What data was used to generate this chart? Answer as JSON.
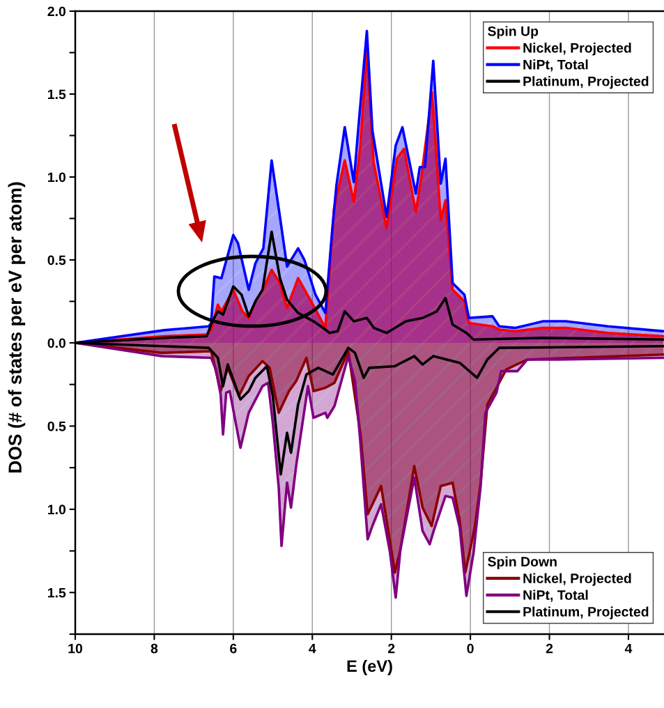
{
  "chart_data": [
    {
      "type": "area",
      "legend_title": "Spin Up",
      "legend": "top right",
      "grid": "x",
      "tick_labels": "y",
      "ylabel": "DOS (# of states per eV per atom)",
      "xlim": [
        -10,
        4.9
      ],
      "xticks": [
        -10,
        -8,
        -6,
        -4,
        -2,
        0,
        2,
        4
      ],
      "ylim": [
        0,
        2.0
      ],
      "yticks": [
        {
          "value": 0,
          "label": "0.0"
        },
        {
          "value": 0.25,
          "label": null
        },
        {
          "value": 0.5,
          "label": "0.5"
        },
        {
          "value": 0.75,
          "label": null
        },
        {
          "value": 1.0,
          "label": "1.0"
        },
        {
          "value": 1.25,
          "label": null
        },
        {
          "value": 1.5,
          "label": "1.5"
        },
        {
          "value": 1.75,
          "label": null
        },
        {
          "value": 2.0,
          "label": "2.0"
        }
      ],
      "series": [
        {
          "name": "Nickel, Projected",
          "color": "#ff0000",
          "x": [
            -10,
            -7.76,
            -6.67,
            -6.56,
            -6.39,
            -6.3,
            -6.0,
            -5.77,
            -5.61,
            -5.44,
            -5.21,
            -5.03,
            -4.82,
            -4.64,
            -4.36,
            -4.03,
            -3.67,
            -3.45,
            -3.18,
            -2.95,
            -2.79,
            -2.62,
            -2.45,
            -2.12,
            -1.86,
            -1.68,
            -1.38,
            -1.24,
            -0.97,
            -0.75,
            -0.63,
            -0.45,
            -0.15,
            -0.04,
            0.56,
            0.73,
            1.14,
            1.84,
            2.42,
            3.48,
            4.89
          ],
          "values": [
            0,
            0.04,
            0.05,
            0.08,
            0.23,
            0.19,
            0.32,
            0.19,
            0.15,
            0.25,
            0.34,
            0.44,
            0.36,
            0.21,
            0.39,
            0.25,
            0.09,
            0.81,
            1.1,
            0.85,
            1.18,
            1.76,
            1.09,
            0.69,
            1.11,
            1.17,
            0.79,
            1.0,
            1.51,
            0.74,
            0.86,
            0.32,
            0.25,
            0.12,
            0.1,
            0.08,
            0.07,
            0.09,
            0.09,
            0.06,
            0.04
          ]
        },
        {
          "name": "NiPt, Total",
          "color": "#0000ff",
          "x": [
            -10,
            -7.76,
            -6.62,
            -6.56,
            -6.48,
            -6.3,
            -6.0,
            -5.88,
            -5.61,
            -5.44,
            -5.24,
            -5.03,
            -4.82,
            -4.64,
            -4.36,
            -4.2,
            -3.92,
            -3.67,
            -3.5,
            -3.39,
            -3.18,
            -2.95,
            -2.83,
            -2.62,
            -2.48,
            -2.12,
            -1.89,
            -1.72,
            -1.38,
            -1.28,
            -1.15,
            -0.94,
            -0.75,
            -0.63,
            -0.45,
            -0.15,
            -0.04,
            0.56,
            0.73,
            1.14,
            1.84,
            2.42,
            3.48,
            4.89
          ],
          "values": [
            0,
            0.076,
            0.1,
            0.12,
            0.4,
            0.39,
            0.65,
            0.6,
            0.32,
            0.48,
            0.57,
            1.1,
            0.76,
            0.46,
            0.57,
            0.5,
            0.29,
            0.18,
            0.67,
            0.95,
            1.3,
            0.97,
            1.31,
            1.88,
            1.28,
            0.76,
            1.19,
            1.3,
            0.9,
            1.06,
            1.06,
            1.7,
            0.96,
            1.11,
            0.36,
            0.29,
            0.15,
            0.16,
            0.1,
            0.09,
            0.13,
            0.13,
            0.1,
            0.07
          ]
        },
        {
          "name": "Platinum, Projected",
          "type": "line",
          "color": "#000000",
          "x": [
            -10,
            -7.76,
            -6.67,
            -6.53,
            -6.39,
            -6.26,
            -6.0,
            -5.79,
            -5.61,
            -5.44,
            -5.26,
            -5.03,
            -4.82,
            -4.64,
            -4.36,
            -3.97,
            -3.67,
            -3.57,
            -3.36,
            -3.18,
            -2.95,
            -2.62,
            -2.44,
            -2.12,
            -1.63,
            -1.21,
            -0.85,
            -0.63,
            -0.45,
            -0.1,
            0.08,
            1.84,
            4.89
          ],
          "values": [
            0,
            0.03,
            0.04,
            0.13,
            0.19,
            0.17,
            0.34,
            0.29,
            0.16,
            0.25,
            0.32,
            0.67,
            0.39,
            0.26,
            0.18,
            0.13,
            0.08,
            0.06,
            0.07,
            0.19,
            0.13,
            0.15,
            0.09,
            0.06,
            0.13,
            0.15,
            0.19,
            0.27,
            0.11,
            0.06,
            0.02,
            0.03,
            0.02
          ]
        }
      ]
    },
    {
      "type": "area",
      "legend_title": "Spin Down",
      "legend": "bottom right",
      "grid": "x",
      "xlabel": "E (eV)",
      "xlim": [
        -10,
        4.9
      ],
      "xticks": [
        {
          "value": -10,
          "label": "10"
        },
        {
          "value": -8,
          "label": "8"
        },
        {
          "value": -6,
          "label": "6"
        },
        {
          "value": -4,
          "label": "4"
        },
        {
          "value": -2,
          "label": "2"
        },
        {
          "value": 0,
          "label": "0"
        },
        {
          "value": 2,
          "label": "2"
        },
        {
          "value": 4,
          "label": "4"
        }
      ],
      "ylim": [
        1.75,
        0
      ],
      "yticks": [
        {
          "value": 0.25,
          "label": null
        },
        {
          "value": 0.5,
          "label": "0.5"
        },
        {
          "value": 0.75,
          "label": null
        },
        {
          "value": 1.0,
          "label": "1.0"
        },
        {
          "value": 1.25,
          "label": null
        },
        {
          "value": 1.5,
          "label": "1.5"
        },
        {
          "value": 1.75,
          "label": null
        }
      ],
      "series": [
        {
          "name": "Nickel, Projected",
          "color": "#8b0000",
          "x": [
            -10,
            -7.8,
            -6.56,
            -6.32,
            -6.14,
            -5.86,
            -5.61,
            -5.26,
            -5.08,
            -4.85,
            -4.59,
            -4.41,
            -4.15,
            -3.97,
            -3.67,
            -3.44,
            -3.09,
            -2.78,
            -2.6,
            -2.26,
            -1.91,
            -1.77,
            -1.42,
            -1.21,
            -0.98,
            -0.75,
            -0.45,
            -0.27,
            -0.13,
            0.11,
            0.26,
            0.43,
            0.66,
            0.91,
            1.44,
            4.89
          ],
          "values": [
            0,
            0.06,
            0.05,
            0.29,
            0.15,
            0.32,
            0.2,
            0.11,
            0.15,
            0.42,
            0.29,
            0.23,
            0.09,
            0.29,
            0.27,
            0.24,
            0.05,
            0.55,
            1.03,
            0.86,
            1.38,
            1.24,
            0.74,
            0.99,
            1.1,
            0.86,
            0.84,
            1.07,
            1.38,
            1.11,
            0.84,
            0.37,
            0.27,
            0.16,
            0.1,
            0.07
          ]
        },
        {
          "name": "NiPt, Total",
          "color": "#800080",
          "x": [
            -10,
            -7.8,
            -6.56,
            -6.44,
            -6.32,
            -6.26,
            -6.18,
            -6.09,
            -5.82,
            -5.61,
            -5.26,
            -5.12,
            -5.0,
            -4.85,
            -4.78,
            -4.64,
            -4.54,
            -4.41,
            -4.11,
            -3.97,
            -3.67,
            -3.62,
            -3.44,
            -3.09,
            -2.92,
            -2.79,
            -2.6,
            -2.48,
            -2.26,
            -2.04,
            -1.89,
            -1.77,
            -1.42,
            -1.21,
            -1.03,
            -0.93,
            -0.63,
            -0.45,
            -0.27,
            -0.1,
            0.08,
            0.26,
            0.38,
            0.66,
            0.78,
            1.19,
            1.44,
            2.19,
            4.89
          ],
          "values": [
            0,
            0.08,
            0.09,
            0.16,
            0.31,
            0.55,
            0.3,
            0.29,
            0.63,
            0.42,
            0.26,
            0.24,
            0.48,
            0.87,
            1.22,
            0.84,
            0.99,
            0.74,
            0.26,
            0.45,
            0.42,
            0.45,
            0.38,
            0.08,
            0.23,
            0.58,
            1.18,
            1.1,
            0.97,
            1.25,
            1.53,
            1.24,
            0.81,
            1.13,
            1.21,
            1.13,
            0.92,
            0.93,
            1.11,
            1.52,
            1.26,
            0.86,
            0.42,
            0.3,
            0.17,
            0.17,
            0.1,
            0.1,
            0.09
          ]
        },
        {
          "name": "Platinum, Projected",
          "type": "line",
          "color": "#000000",
          "x": [
            -10,
            -7.8,
            -6.62,
            -6.39,
            -6.26,
            -6.14,
            -5.82,
            -5.61,
            -5.44,
            -5.15,
            -5.0,
            -4.8,
            -4.64,
            -4.54,
            -4.36,
            -4.15,
            -3.85,
            -3.48,
            -3.09,
            -2.92,
            -2.7,
            -2.56,
            -1.91,
            -1.42,
            -1.21,
            -0.94,
            -0.27,
            0.17,
            0.43,
            0.73,
            4.89
          ],
          "values": [
            0,
            0.02,
            0.03,
            0.09,
            0.26,
            0.13,
            0.34,
            0.29,
            0.21,
            0.14,
            0.32,
            0.79,
            0.54,
            0.66,
            0.37,
            0.19,
            0.15,
            0.19,
            0.03,
            0.06,
            0.21,
            0.15,
            0.14,
            0.08,
            0.13,
            0.08,
            0.12,
            0.21,
            0.1,
            0.03,
            0.02
          ]
        }
      ]
    }
  ]
}
